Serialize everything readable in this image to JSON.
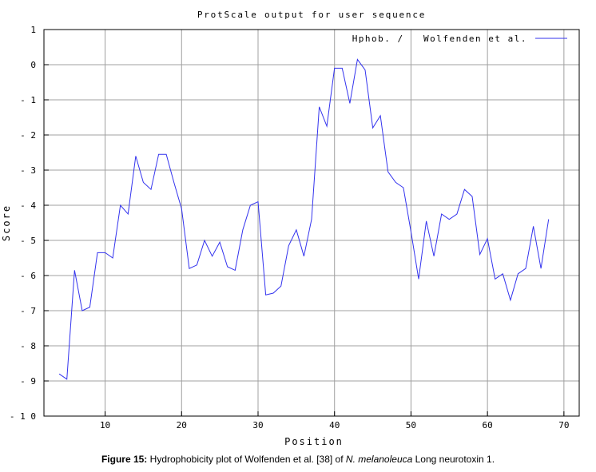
{
  "chart_data": {
    "type": "line",
    "title": "ProtScale output for user sequence",
    "xlabel": "Position",
    "ylabel": "Score",
    "xlim": [
      2,
      72
    ],
    "ylim": [
      -10,
      1
    ],
    "x_ticks": [
      10,
      20,
      30,
      40,
      50,
      60,
      70
    ],
    "y_ticks": [
      1,
      0,
      -1,
      -2,
      -3,
      -4,
      -5,
      -6,
      -7,
      -8,
      -9,
      -10
    ],
    "y_tick_labels": [
      "1",
      "0",
      "- 1",
      "- 2",
      "- 3",
      "- 4",
      "- 5",
      "- 6",
      "- 7",
      "- 8",
      "- 9",
      "- 1 0"
    ],
    "grid": true,
    "legend_position": "top-right",
    "series": [
      {
        "name": "Hphob. /   Wolfenden et al.",
        "color": "#3333ee",
        "x": [
          4,
          5,
          6,
          7,
          8,
          9,
          10,
          11,
          12,
          13,
          14,
          15,
          16,
          17,
          18,
          19,
          20,
          21,
          22,
          23,
          24,
          25,
          26,
          27,
          28,
          29,
          30,
          31,
          32,
          33,
          34,
          35,
          36,
          37,
          38,
          39,
          40,
          41,
          42,
          43,
          44,
          45,
          46,
          47,
          48,
          49,
          50,
          51,
          52,
          53,
          54,
          55,
          56,
          57,
          58,
          59,
          60,
          61,
          62,
          63,
          64,
          65,
          66,
          67,
          68
        ],
        "y": [
          -8.8,
          -8.95,
          -5.85,
          -7.0,
          -6.9,
          -5.35,
          -5.35,
          -5.5,
          -4.0,
          -4.25,
          -2.6,
          -3.35,
          -3.55,
          -2.55,
          -2.55,
          -3.35,
          -4.1,
          -5.8,
          -5.7,
          -5.0,
          -5.45,
          -5.05,
          -5.75,
          -5.85,
          -4.7,
          -4.0,
          -3.9,
          -6.55,
          -6.5,
          -6.3,
          -5.15,
          -4.7,
          -5.45,
          -4.4,
          -1.2,
          -1.75,
          -0.1,
          -0.1,
          -1.1,
          0.15,
          -0.15,
          -1.8,
          -1.45,
          -3.05,
          -3.35,
          -3.5,
          -4.75,
          -6.1,
          -4.45,
          -5.45,
          -4.25,
          -4.4,
          -4.25,
          -3.55,
          -3.75,
          -5.4,
          -4.95,
          -6.1,
          -5.95,
          -6.7,
          -5.95,
          -5.8,
          -4.6,
          -5.8,
          -4.4
        ]
      }
    ]
  },
  "caption": {
    "label": "Figure 15:",
    "text_before": " Hydrophobicity plot of Wolfenden et al. [38] of ",
    "species": "N. melanoleuca",
    "text_after": " Long neurotoxin 1."
  }
}
